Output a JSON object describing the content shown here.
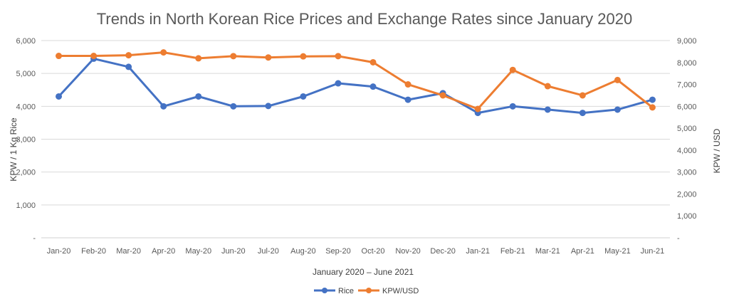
{
  "chart_data": {
    "type": "line",
    "title": "Trends in North Korean Rice Prices and Exchange Rates since January 2020",
    "xlabel": "January 2020 – June 2021",
    "ylabel_left": "KPW / 1 Kg Rice",
    "ylabel_right": "KPW / USD",
    "ylim_left": [
      0,
      6000
    ],
    "ylim_right": [
      0,
      9000
    ],
    "yticks_left": [
      "-",
      "1,000",
      "2,000",
      "3,000",
      "4,000",
      "5,000",
      "6,000"
    ],
    "yticks_right": [
      "-",
      "1,000",
      "2,000",
      "3,000",
      "4,000",
      "5,000",
      "6,000",
      "7,000",
      "8,000",
      "9,000"
    ],
    "grid": true,
    "legend_position": "bottom",
    "categories": [
      "Jan-20",
      "Feb-20",
      "Mar-20",
      "Apr-20",
      "May-20",
      "Jun-20",
      "Jul-20",
      "Aug-20",
      "Sep-20",
      "Oct-20",
      "Nov-20",
      "Dec-20",
      "Jan-21",
      "Feb-21",
      "Mar-21",
      "Apr-21",
      "May-21",
      "Jun-21"
    ],
    "series": [
      {
        "name": "Rice",
        "axis": "left",
        "color": "#4472C4",
        "values": [
          4300,
          5450,
          5200,
          4000,
          4300,
          4000,
          4010,
          4300,
          4700,
          4600,
          4200,
          4400,
          3800,
          4000,
          3900,
          3800,
          3900,
          4200
        ]
      },
      {
        "name": "KPW/USD",
        "axis": "right",
        "color": "#ED7D31",
        "values": [
          8300,
          8300,
          8330,
          8460,
          8190,
          8290,
          8230,
          8280,
          8290,
          8010,
          7000,
          6500,
          5880,
          7660,
          6920,
          6500,
          7200,
          5950
        ]
      }
    ]
  }
}
